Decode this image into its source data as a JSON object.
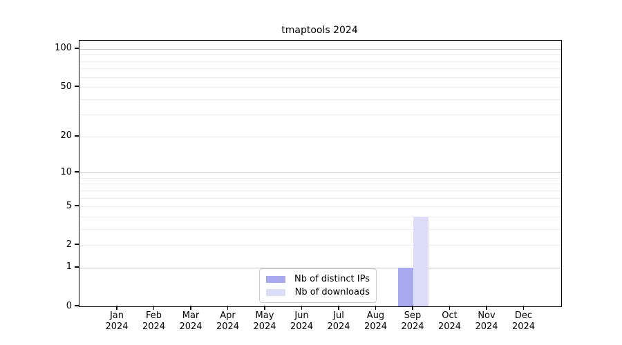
{
  "title": "tmaptools 2024",
  "chart_data": {
    "type": "bar",
    "title": "tmaptools 2024",
    "categories": [
      "Jan",
      "Feb",
      "Mar",
      "Apr",
      "May",
      "Jun",
      "Jul",
      "Aug",
      "Sep",
      "Oct",
      "Nov",
      "Dec"
    ],
    "category_year": "2024",
    "series": [
      {
        "name": "Nb of distinct IPs",
        "color": "#a9a9ef",
        "values": [
          0,
          0,
          0,
          0,
          0,
          0,
          0,
          0,
          1,
          0,
          0,
          0
        ]
      },
      {
        "name": "Nb of downloads",
        "color": "#dcdcf8",
        "values": [
          0,
          0,
          0,
          0,
          0,
          0,
          0,
          0,
          4,
          0,
          0,
          0
        ]
      }
    ],
    "xlabel": "",
    "ylabel": "",
    "yscale": "log1p",
    "ylim": [
      0,
      116
    ],
    "y_tick_labels": [
      0,
      1,
      2,
      5,
      10,
      20,
      50,
      100
    ],
    "y_major_gridlines": [
      1,
      10,
      100
    ],
    "y_minor_gridlines": [
      2,
      3,
      4,
      5,
      6,
      7,
      8,
      9,
      20,
      30,
      40,
      50,
      60,
      70,
      80,
      90
    ],
    "grid": true,
    "legend_position": "lower center",
    "colors": {
      "axis": "#000000",
      "major_grid": "#c4c4c4",
      "minor_grid": "#ebebeb",
      "legend_border": "#cccccc",
      "background": "#ffffff"
    }
  }
}
